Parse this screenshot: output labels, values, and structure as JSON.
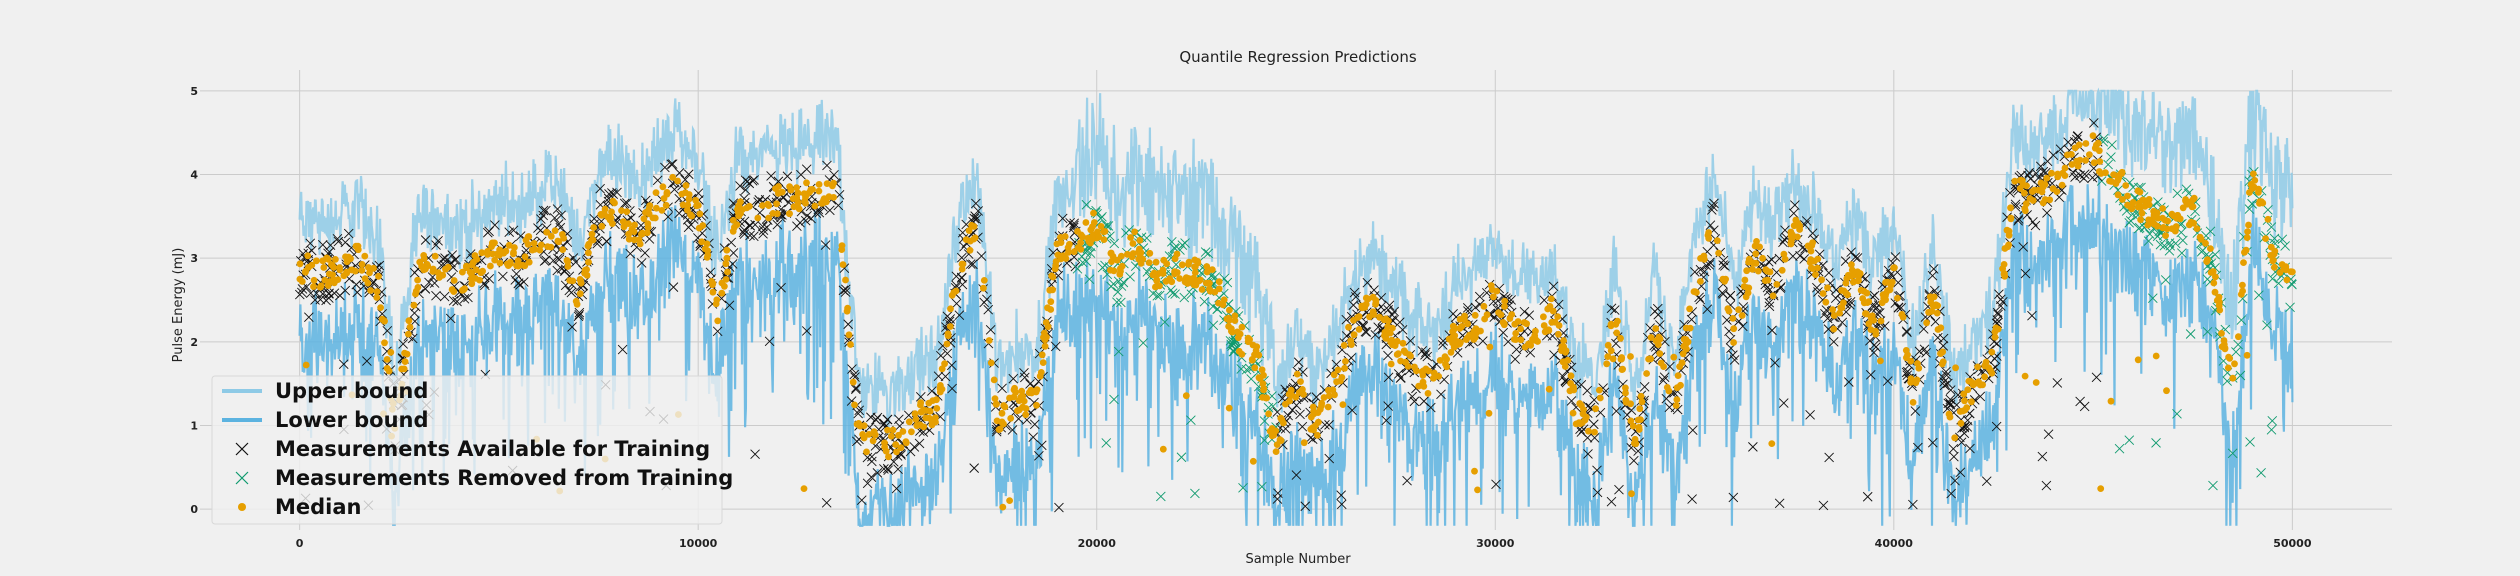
{
  "chart_data": {
    "type": "scatter",
    "title": "Quantile Regression Predictions",
    "xlabel": "Sample Number",
    "ylabel": "Pulse Energy (mJ)",
    "xlim": [
      -2500,
      52500
    ],
    "ylim": [
      -0.25,
      5.25
    ],
    "xticks": [
      0,
      10000,
      20000,
      30000,
      40000,
      50000
    ],
    "yticks": [
      0,
      1,
      2,
      3,
      4,
      5
    ],
    "grid": true,
    "legend_position": "lower-left",
    "colors": {
      "upper": "#8ecae6",
      "lower": "#5cb3e0",
      "train": "#111111",
      "removed": "#0f9a6e",
      "median": "#e69f00"
    },
    "series": [
      {
        "key": "upper",
        "name": "Upper bound",
        "marker": "line"
      },
      {
        "key": "lower",
        "name": "Lower bound",
        "marker": "line"
      },
      {
        "key": "train",
        "name": "Measurements Available for Training",
        "marker": "x"
      },
      {
        "key": "removed",
        "name": "Measurements Removed from Training",
        "marker": "x"
      },
      {
        "key": "median",
        "name": "Median",
        "marker": "dot"
      }
    ],
    "median_trend": {
      "x": [
        0,
        500,
        1000,
        1500,
        2000,
        2400,
        3000,
        3500,
        4000,
        4500,
        5000,
        5500,
        6000,
        6500,
        7000,
        7500,
        8000,
        8500,
        9000,
        9500,
        10000,
        10500,
        11000,
        11500,
        12000,
        12500,
        13000,
        13500,
        14000,
        14500,
        15000,
        15500,
        16000,
        16500,
        17000,
        17500,
        18000,
        18500,
        19000,
        19500,
        20000,
        20500,
        21000,
        21500,
        22000,
        22500,
        23000,
        23500,
        24000,
        24500,
        25000,
        25500,
        26000,
        26500,
        27000,
        27500,
        28000,
        28500,
        29000,
        29500,
        30000,
        30500,
        31000,
        31500,
        32000,
        32500,
        33000,
        33500,
        34000,
        34500,
        35000,
        35500,
        36000,
        36500,
        37000,
        37500,
        38000,
        38500,
        39000,
        39500,
        40000,
        40500,
        41000,
        41500,
        42000,
        42500,
        43000,
        43500,
        44000,
        44500,
        45000,
        45500,
        46000,
        46500,
        47000,
        47500,
        48000,
        48500,
        49000,
        49500,
        50000
      ],
      "y": [
        2.9,
        2.8,
        2.9,
        3.0,
        2.6,
        1.0,
        2.9,
        2.9,
        2.7,
        2.9,
        3.1,
        3.0,
        3.2,
        3.3,
        2.5,
        3.5,
        3.6,
        3.2,
        3.7,
        3.9,
        3.5,
        2.4,
        3.6,
        3.6,
        3.7,
        3.7,
        3.8,
        3.8,
        0.9,
        0.8,
        0.8,
        1.1,
        1.2,
        2.8,
        3.4,
        1.1,
        1.3,
        1.3,
        3.1,
        3.2,
        3.4,
        2.8,
        3.2,
        2.8,
        2.9,
        2.8,
        2.7,
        2.1,
        1.8,
        0.8,
        1.5,
        1.0,
        1.5,
        2.3,
        2.4,
        2.0,
        1.6,
        1.5,
        2.1,
        2.2,
        2.6,
        2.1,
        2.1,
        2.4,
        1.2,
        1.0,
        2.3,
        0.8,
        2.2,
        1.2,
        2.6,
        3.4,
        2.0,
        3.1,
        2.7,
        3.4,
        3.0,
        2.3,
        2.9,
        2.2,
        2.8,
        1.4,
        2.6,
        0.9,
        1.5,
        1.8,
        3.8,
        3.7,
        3.9,
        4.2,
        4.3,
        4.0,
        3.7,
        3.5,
        3.4,
        3.6,
        2.9,
        1.5,
        4.0,
        3.1,
        2.7
      ],
      "removed_regions": [
        [
          19500,
          24500
        ],
        [
          45200,
          50000
        ]
      ]
    }
  }
}
